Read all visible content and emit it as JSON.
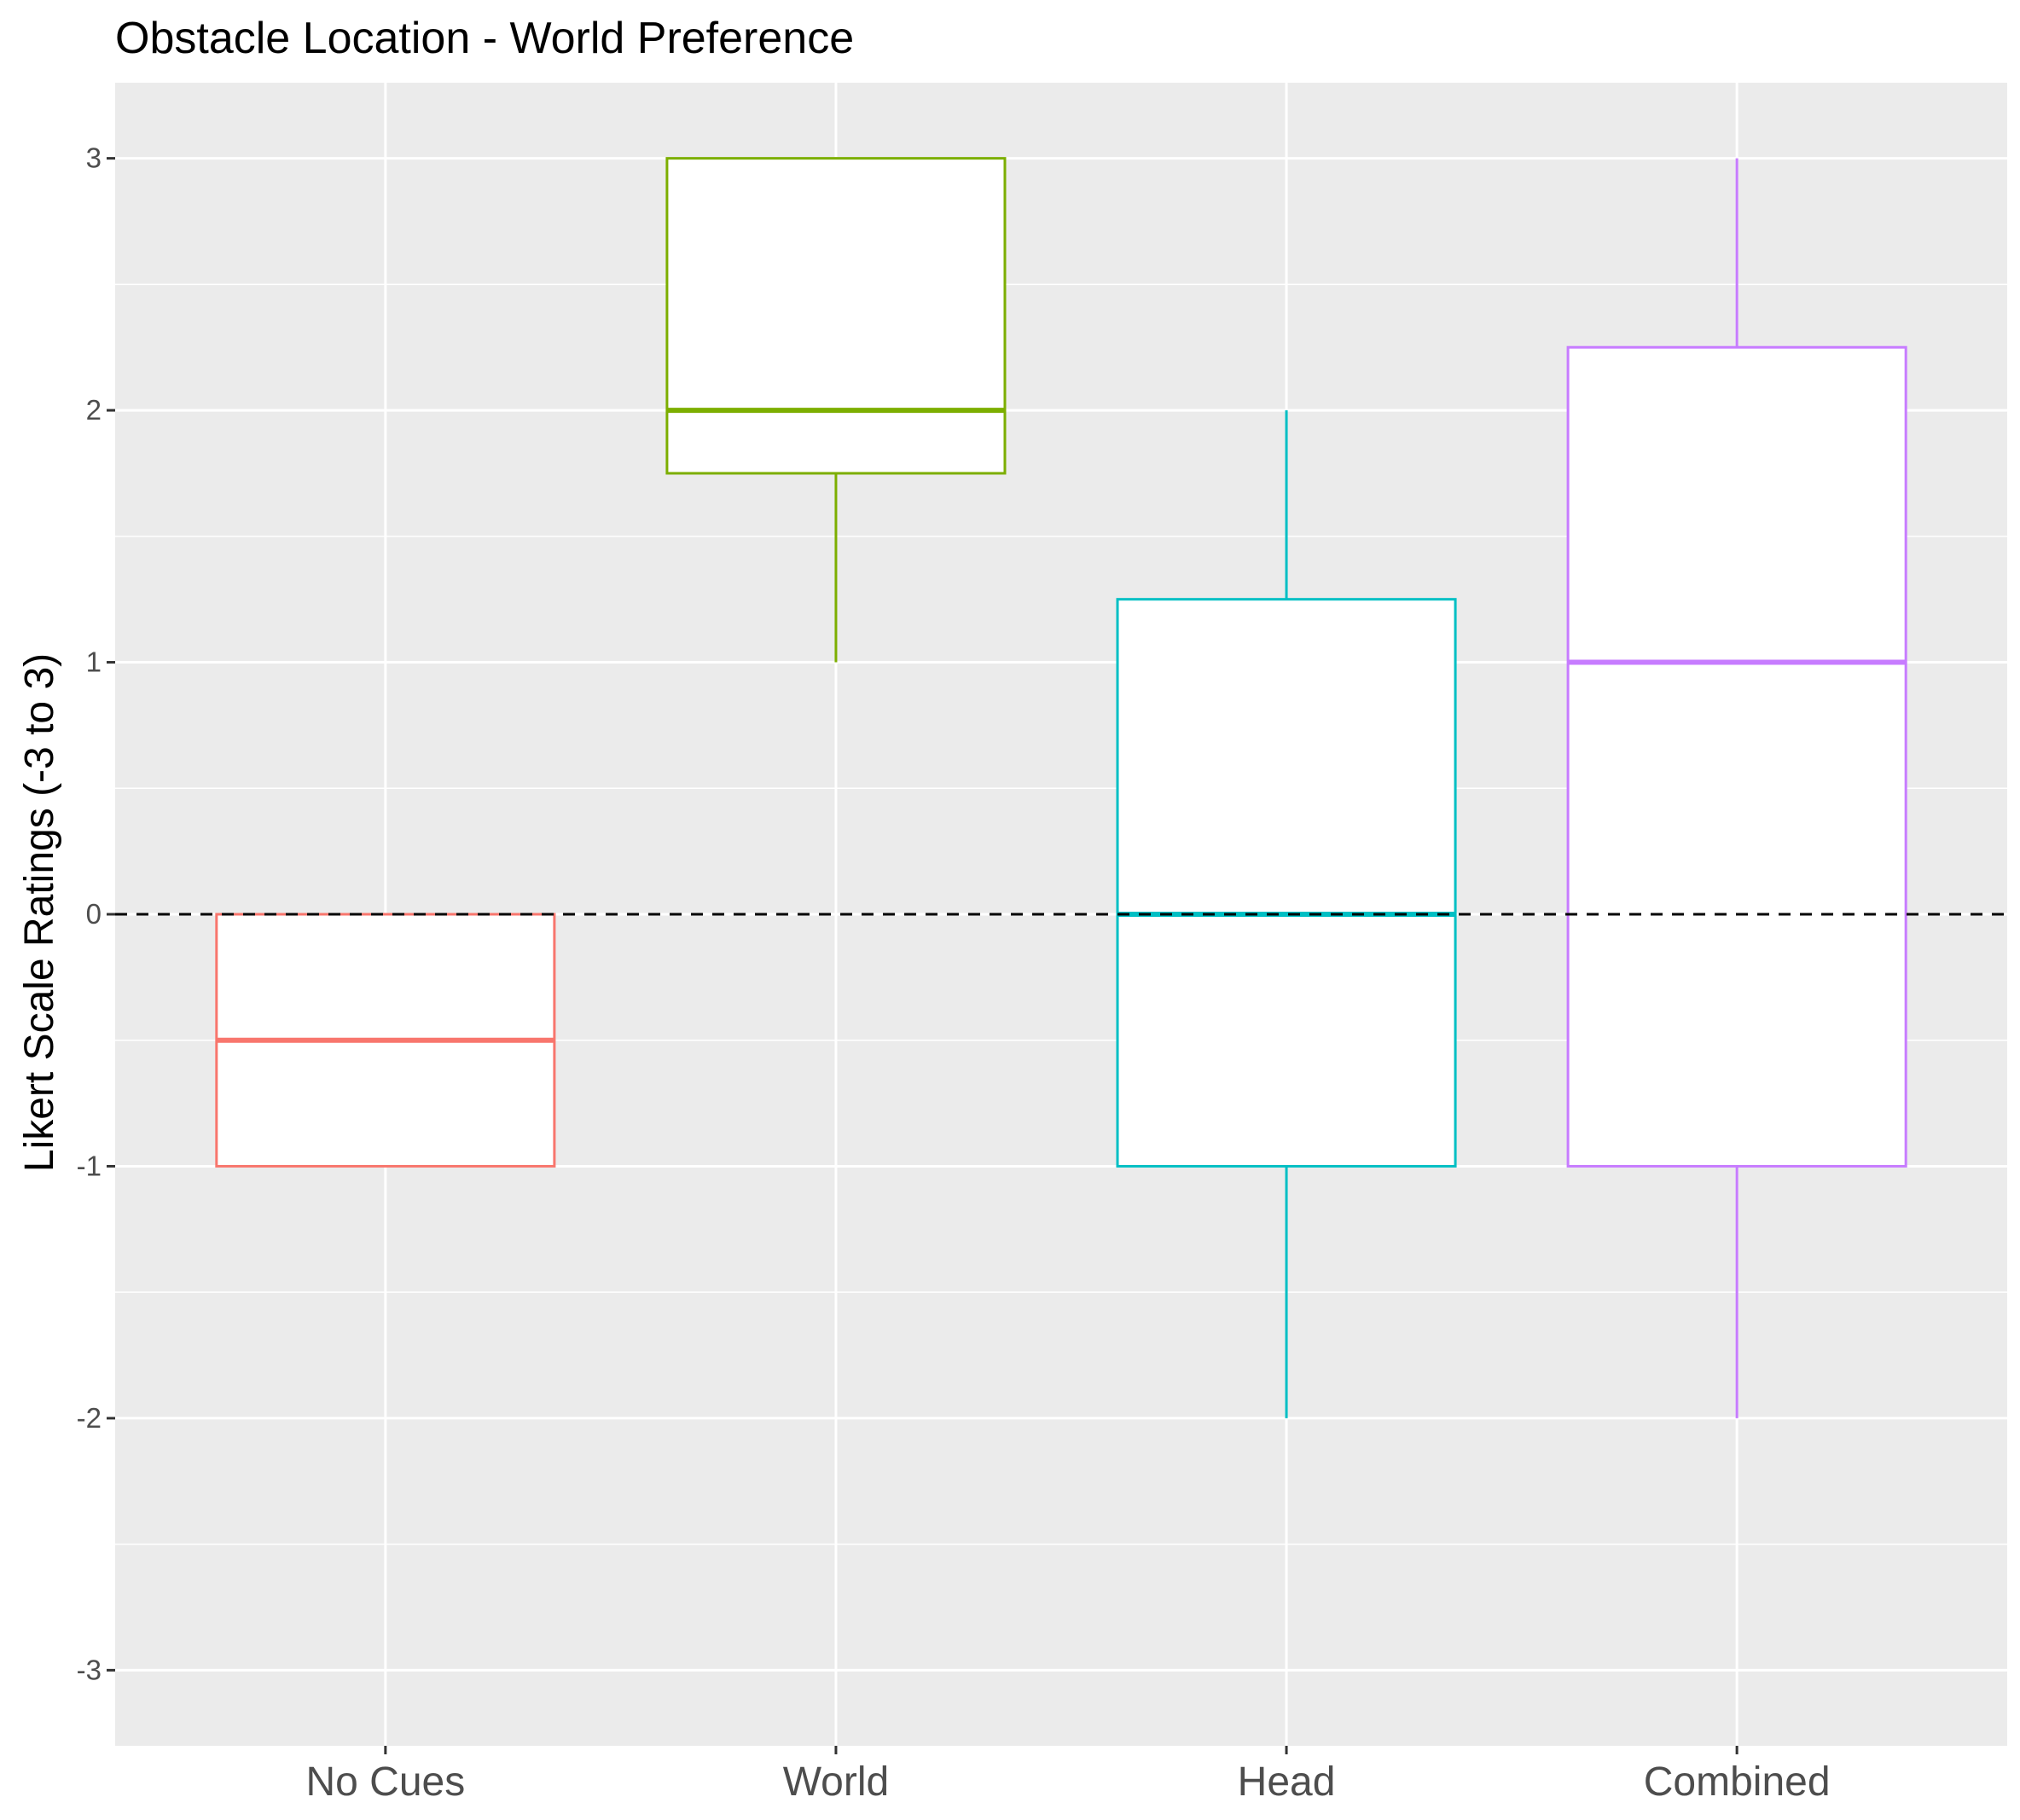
{
  "chart_data": {
    "type": "box",
    "title": "Obstacle Location - World Preference",
    "xlabel": "",
    "ylabel": "Likert Scale Ratings (-3 to 3)",
    "ylim": [
      -3.3,
      3.3
    ],
    "yticks": [
      3,
      2,
      1,
      0,
      -1,
      -2,
      -3
    ],
    "grid": true,
    "reference_line": {
      "y": 0,
      "style": "dashed"
    },
    "categories": [
      "No Cues",
      "World",
      "Head",
      "Combined"
    ],
    "series": [
      {
        "category": "No Cues",
        "color": "#F8766D",
        "lower_whisker": -1,
        "q1": -1,
        "median": -0.5,
        "q3": 0,
        "upper_whisker": 0
      },
      {
        "category": "World",
        "color": "#7CAE00",
        "lower_whisker": 1,
        "q1": 1.75,
        "median": 2,
        "q3": 3,
        "upper_whisker": 3
      },
      {
        "category": "Head",
        "color": "#00BFC4",
        "lower_whisker": -2,
        "q1": -1,
        "median": 0,
        "q3": 1.25,
        "upper_whisker": 2
      },
      {
        "category": "Combined",
        "color": "#C77CFF",
        "lower_whisker": -2,
        "q1": -1,
        "median": 1,
        "q3": 2.25,
        "upper_whisker": 3
      }
    ]
  }
}
